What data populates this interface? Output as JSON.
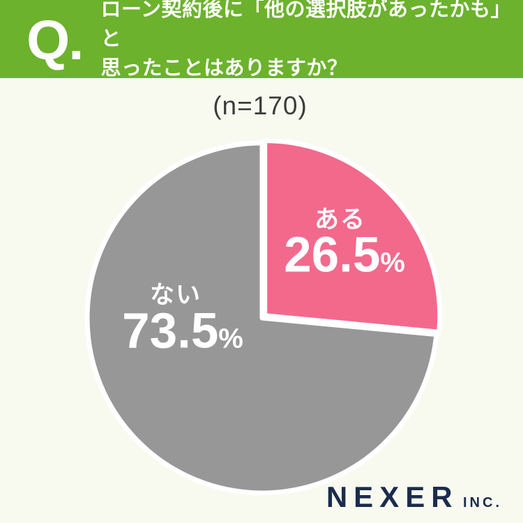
{
  "header": {
    "q_label": "Q.",
    "title_line1": "ローン契約後に「他の選択肢があったかも」と",
    "title_line2": "思ったことはありますか？",
    "bg_color": "#6cb22d",
    "text_color": "#ffffff"
  },
  "sample_size": "(n=170)",
  "chart_data": {
    "type": "pie",
    "title": "ローン契約後に「他の選択肢があったかも」と思ったことはありますか？",
    "sample_label": "(n=170)",
    "categories": [
      "ある",
      "ない"
    ],
    "values": [
      26.5,
      73.5
    ],
    "unit": "%",
    "colors": [
      "#f2698c",
      "#979797"
    ],
    "start_angle_deg": -90,
    "direction": "clockwise",
    "stroke_color": "#ffffff",
    "slice_labels": [
      {
        "name": "ある",
        "value": "26.5",
        "unit": "%"
      },
      {
        "name": "ない",
        "value": "73.5",
        "unit": "%"
      }
    ],
    "legend_position": "none",
    "background_color": "#f8faf0"
  },
  "footer": {
    "brand": "NEXER",
    "brand_suffix": "INC.",
    "color": "#1b2c4c"
  }
}
